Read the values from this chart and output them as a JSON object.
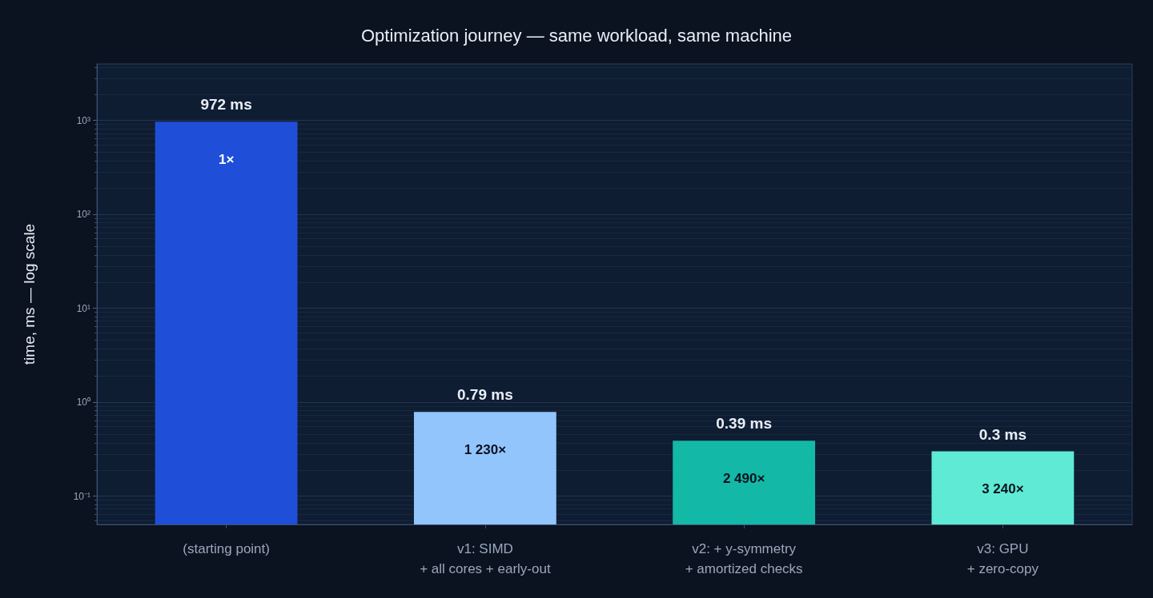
{
  "chart_data": {
    "type": "bar",
    "title": "Optimization journey — same workload, same machine",
    "ylabel": "time, ms — log scale",
    "categories": [
      "(starting point)",
      "v1: SIMD\n+ all cores + early-out",
      "v2: + y-symmetry\n+ amortized checks",
      "v3: GPU\n+ zero-copy"
    ],
    "values": [
      972,
      0.79,
      0.39,
      0.3
    ],
    "colors": [
      "#1f4fd8",
      "#93c5fd",
      "#14b8a6",
      "#5eead4"
    ],
    "value_labels": [
      "972 ms",
      "0.79 ms",
      "0.39 ms",
      "0.3 ms"
    ],
    "annotations": [
      {
        "text": "1×",
        "x": "(starting point)",
        "y": 972
      },
      {
        "text": "1 230×",
        "x": "v1: SIMD\n+ all cores + early-out",
        "y": 0.79
      },
      {
        "text": "2 490×",
        "x": "v2: + y-symmetry\n+ amortized checks",
        "y": 0.39
      },
      {
        "text": "3 240×",
        "x": "v3: GPU\n+ zero-copy",
        "y": 0.3
      }
    ],
    "log": true,
    "ylim": [
      0.05,
      4000
    ],
    "yticks": [
      {
        "value": 0.1,
        "label": "10⁻¹"
      },
      {
        "value": 1,
        "label": "10⁰"
      },
      {
        "value": 10,
        "label": "10¹"
      },
      {
        "value": 100,
        "label": "10²"
      },
      {
        "value": 1000,
        "label": "10³"
      }
    ],
    "grid": "y"
  }
}
